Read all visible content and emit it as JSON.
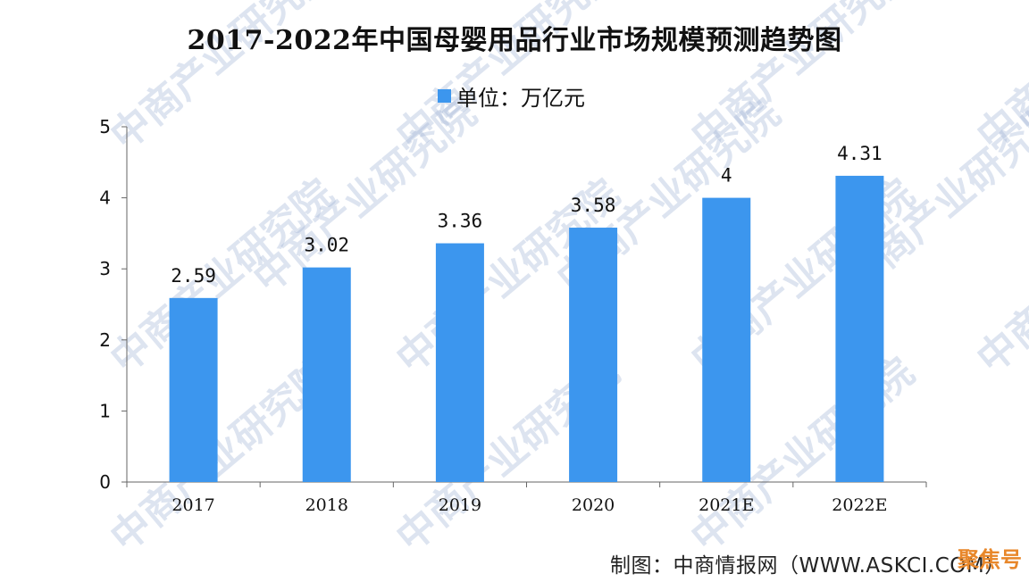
{
  "title": "2017-2022年中国母婴用品行业市场规模预测趋势图",
  "legend_label": "单位：万亿元",
  "source": "制图：中商情报网（WWW.ASKCI.COM）",
  "watermark": "中商产业研究院",
  "corner_badge": "聚焦号",
  "colors": {
    "bar": "#3c96ee",
    "axis": "#666666",
    "text": "#111111",
    "watermark": "#9fb3d6",
    "badge": "#e8872a"
  },
  "chart_data": {
    "type": "bar",
    "title": "2017-2022年中国母婴用品行业市场规模预测趋势图",
    "categories": [
      "2017",
      "2018",
      "2019",
      "2020",
      "2021E",
      "2022E"
    ],
    "series": [
      {
        "name": "单位：万亿元",
        "values": [
          2.59,
          3.02,
          3.36,
          3.58,
          4,
          4.31
        ]
      }
    ],
    "data_labels": [
      "2.59",
      "3.02",
      "3.36",
      "3.58",
      "4",
      "4.31"
    ],
    "yticks": [
      "0",
      "1",
      "2",
      "3",
      "4",
      "5"
    ],
    "ylim": [
      0,
      5
    ],
    "xlabel": "",
    "ylabel": "",
    "grid": false,
    "legend_position": "top-center"
  }
}
